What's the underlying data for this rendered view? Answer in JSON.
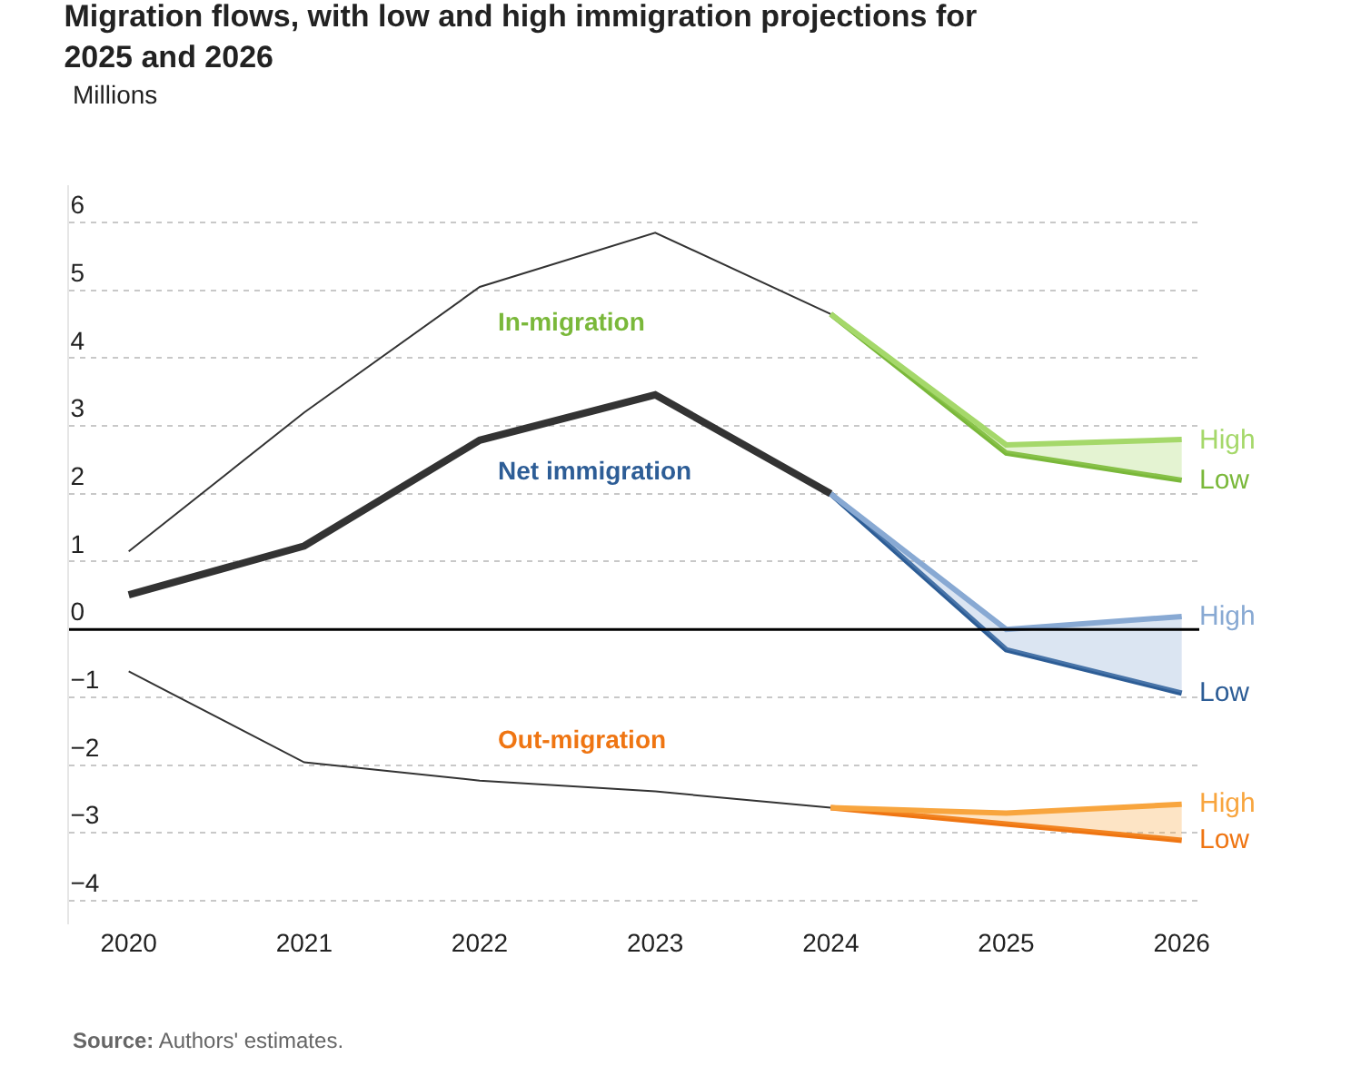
{
  "chart_data": {
    "type": "line",
    "title": "Migration flows, with low and high immigration projections for 2025 and 2026",
    "ylabel": "Millions",
    "xlim": [
      2019.66,
      2026.1
    ],
    "xticks": [
      2020,
      2021,
      2022,
      2023,
      2024,
      2025,
      2026
    ],
    "ylim": [
      -4.35,
      6.55
    ],
    "yticks": [
      {
        "value": -4,
        "label": "−4"
      },
      {
        "value": -3,
        "label": "−3"
      },
      {
        "value": -2,
        "label": "−2"
      },
      {
        "value": -1,
        "label": "−1"
      },
      0,
      1,
      2,
      3,
      4,
      5,
      6
    ],
    "grid": "y",
    "legend": false,
    "marker": "none",
    "line_style": "solid",
    "ref_lines": [
      {
        "axis": "y",
        "value": 0,
        "color": "#000000"
      }
    ],
    "annotations": [
      "In-migration",
      "Net immigration",
      "Out-migration",
      "Source: Authors' estimates."
    ],
    "series": [
      {
        "color": "#333333",
        "x": [
          2020,
          2021,
          2022,
          2023,
          2024
        ],
        "values": [
          1.15,
          3.2,
          5.05,
          5.85,
          4.65
        ]
      },
      {
        "name": "Low",
        "color": "#7ab83a",
        "x": [
          2024,
          2025,
          2026
        ],
        "values": [
          4.65,
          2.6,
          2.2
        ]
      },
      {
        "name": "High",
        "color": "#a5d86a",
        "x": [
          2024,
          2025,
          2026
        ],
        "values": [
          4.65,
          2.72,
          2.8
        ],
        "lower": [
          4.65,
          2.6,
          2.2
        ],
        "upper": [
          4.65,
          2.72,
          2.8
        ]
      },
      {
        "color": "#333333",
        "x": [
          2020,
          2021,
          2022,
          2023,
          2024
        ],
        "values": [
          0.51,
          1.23,
          2.79,
          3.46,
          2.0
        ]
      },
      {
        "name": "Low",
        "color": "#2d5d96",
        "x": [
          2024,
          2025,
          2026
        ],
        "values": [
          2.0,
          -0.3,
          -0.94
        ]
      },
      {
        "name": "High",
        "color": "#88a9d3",
        "x": [
          2024,
          2025,
          2026
        ],
        "values": [
          2.0,
          0.0,
          0.19
        ],
        "lower": [
          2.0,
          -0.3,
          -0.94
        ],
        "upper": [
          2.0,
          0.0,
          0.19
        ]
      },
      {
        "color": "#333333",
        "x": [
          2020,
          2021,
          2022,
          2023,
          2024
        ],
        "values": [
          -0.62,
          -1.96,
          -2.23,
          -2.39,
          -2.63
        ]
      },
      {
        "name": "Low",
        "color": "#ef7512",
        "x": [
          2024,
          2025,
          2026
        ],
        "values": [
          -2.63,
          -2.87,
          -3.11
        ]
      },
      {
        "name": "High",
        "color": "#f8a53e",
        "x": [
          2024,
          2025,
          2026
        ],
        "values": [
          -2.63,
          -2.71,
          -2.58
        ],
        "lower": [
          -2.63,
          -2.87,
          -3.11
        ],
        "upper": [
          -2.63,
          -2.71,
          -2.58
        ]
      }
    ]
  }
}
